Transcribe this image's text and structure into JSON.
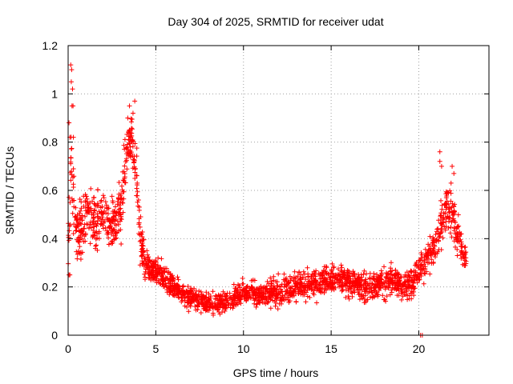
{
  "chart_data": {
    "type": "scatter",
    "title": "Day 304 of 2025, SRMTID for receiver udat",
    "xlabel": "GPS time / hours",
    "ylabel": "SRMTID / TECUs",
    "xlim": [
      0,
      24
    ],
    "ylim": [
      0,
      1.2
    ],
    "xticks": [
      0,
      5,
      10,
      15,
      20
    ],
    "yticks": [
      0,
      0.2,
      0.4,
      0.6,
      0.8,
      1,
      1.2
    ],
    "x_tick_labels": [
      "0",
      "5",
      "10",
      "15",
      "20"
    ],
    "y_tick_labels": [
      "0",
      "0.2",
      "0.4",
      "0.6",
      "0.8",
      "1",
      "1.2"
    ],
    "grid": true,
    "marker": "+",
    "color": "#ff0000",
    "series": [
      {
        "name": "SRMTID",
        "trend": {
          "x": [
            0.0,
            0.1,
            0.2,
            0.3,
            0.5,
            0.8,
            1.0,
            1.5,
            2.0,
            2.5,
            3.0,
            3.3,
            3.6,
            3.9,
            4.1,
            4.4,
            4.8,
            5.3,
            6.0,
            6.5,
            7.0,
            7.5,
            8.0,
            8.5,
            9.0,
            9.5,
            10.0,
            11.0,
            12.0,
            13.0,
            14.0,
            15.0,
            15.5,
            16.0,
            17.0,
            18.0,
            19.0,
            19.5,
            20.0,
            20.5,
            21.0,
            21.3,
            21.6,
            21.9,
            22.2,
            22.5,
            22.7
          ],
          "y": [
            0.35,
            0.55,
            0.75,
            0.55,
            0.42,
            0.45,
            0.5,
            0.48,
            0.5,
            0.45,
            0.5,
            0.75,
            0.82,
            0.65,
            0.4,
            0.3,
            0.27,
            0.25,
            0.2,
            0.17,
            0.15,
            0.14,
            0.13,
            0.13,
            0.14,
            0.16,
            0.18,
            0.17,
            0.18,
            0.2,
            0.22,
            0.23,
            0.24,
            0.22,
            0.2,
            0.22,
            0.22,
            0.2,
            0.27,
            0.32,
            0.38,
            0.45,
            0.55,
            0.52,
            0.42,
            0.35,
            0.32
          ],
          "spread": [
            0.08,
            0.2,
            0.25,
            0.15,
            0.1,
            0.15,
            0.15,
            0.13,
            0.13,
            0.12,
            0.15,
            0.12,
            0.1,
            0.15,
            0.1,
            0.08,
            0.06,
            0.06,
            0.06,
            0.05,
            0.05,
            0.05,
            0.05,
            0.05,
            0.05,
            0.06,
            0.06,
            0.06,
            0.07,
            0.07,
            0.07,
            0.07,
            0.07,
            0.07,
            0.07,
            0.07,
            0.07,
            0.07,
            0.07,
            0.08,
            0.1,
            0.12,
            0.13,
            0.12,
            0.1,
            0.08,
            0.06
          ]
        },
        "points_per_hour": 100,
        "highlights": [
          {
            "x": 0.15,
            "y": 1.12
          },
          {
            "x": 0.2,
            "y": 1.1
          },
          {
            "x": 0.18,
            "y": 1.05
          },
          {
            "x": 0.25,
            "y": 1.02
          },
          {
            "x": 0.22,
            "y": 0.95
          },
          {
            "x": 0.28,
            "y": 0.95
          },
          {
            "x": 0.05,
            "y": 0.88
          },
          {
            "x": 0.1,
            "y": 0.82
          },
          {
            "x": 0.3,
            "y": 0.82
          },
          {
            "x": 3.5,
            "y": 0.95
          },
          {
            "x": 3.8,
            "y": 0.97
          },
          {
            "x": 3.7,
            "y": 0.92
          },
          {
            "x": 3.4,
            "y": 0.9
          },
          {
            "x": 21.2,
            "y": 0.76
          },
          {
            "x": 21.2,
            "y": 0.72
          },
          {
            "x": 21.3,
            "y": 0.7
          },
          {
            "x": 21.9,
            "y": 0.7
          },
          {
            "x": 22.0,
            "y": 0.67
          },
          {
            "x": 0.05,
            "y": 0.25
          },
          {
            "x": 0.1,
            "y": 0.25
          },
          {
            "x": 20.1,
            "y": 0.0
          },
          {
            "x": 20.2,
            "y": 0.0
          }
        ]
      }
    ]
  }
}
